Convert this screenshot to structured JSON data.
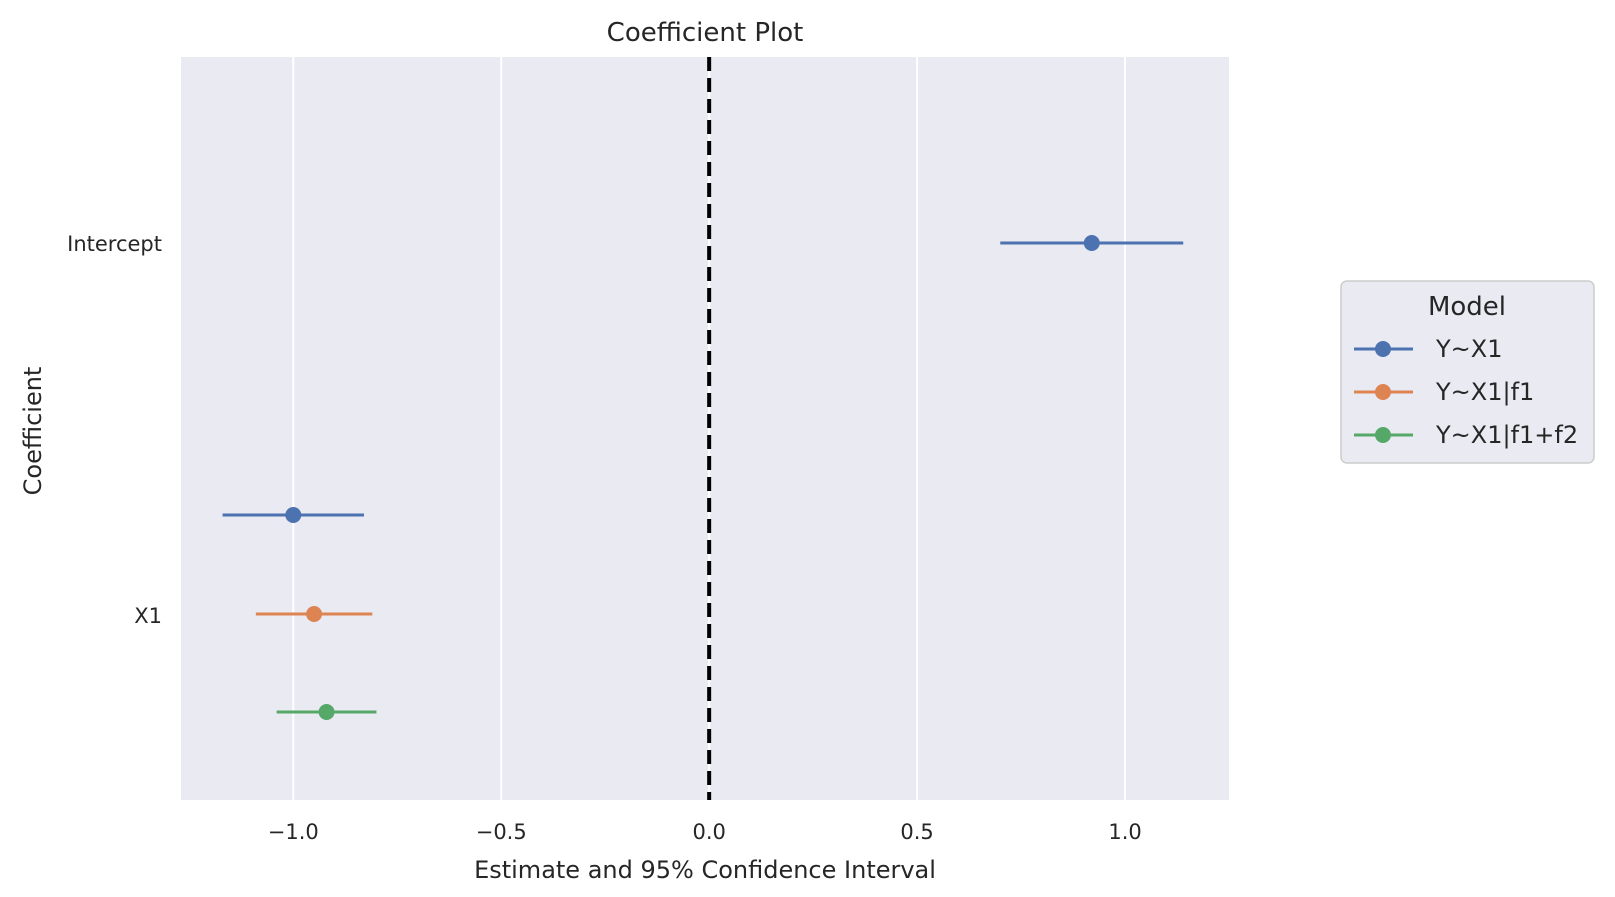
{
  "chart_data": {
    "type": "scatter",
    "title": "Coefficient Plot",
    "xlabel": "Estimate and 95% Confidence Interval",
    "ylabel": "Coefficient",
    "xlim": [
      -1.27,
      1.25
    ],
    "x_ticks": [
      -1.0,
      -0.5,
      0.0,
      0.5,
      1.0
    ],
    "x_tick_labels": [
      "−1.0",
      "−0.5",
      "0.0",
      "0.5",
      "1.0"
    ],
    "categories": [
      "Intercept",
      "X1"
    ],
    "reference_line": {
      "x": 0.0,
      "style": "dashed",
      "color": "#000000"
    },
    "grid": true,
    "legend": {
      "title": "Model",
      "placement": "outside-right"
    },
    "series": [
      {
        "name": "Y~X1",
        "color": "#4c72b0",
        "points": [
          {
            "category": "Intercept",
            "estimate": 0.92,
            "ci_low": 0.7,
            "ci_high": 1.14
          },
          {
            "category": "X1",
            "estimate": -1.0,
            "ci_low": -1.17,
            "ci_high": -0.83
          }
        ]
      },
      {
        "name": "Y~X1|f1",
        "color": "#dd8452",
        "points": [
          {
            "category": "X1",
            "estimate": -0.95,
            "ci_low": -1.09,
            "ci_high": -0.81
          }
        ]
      },
      {
        "name": "Y~X1|f1+f2",
        "color": "#55a868",
        "points": [
          {
            "category": "X1",
            "estimate": -0.92,
            "ci_low": -1.04,
            "ci_high": -0.8
          }
        ]
      }
    ]
  }
}
